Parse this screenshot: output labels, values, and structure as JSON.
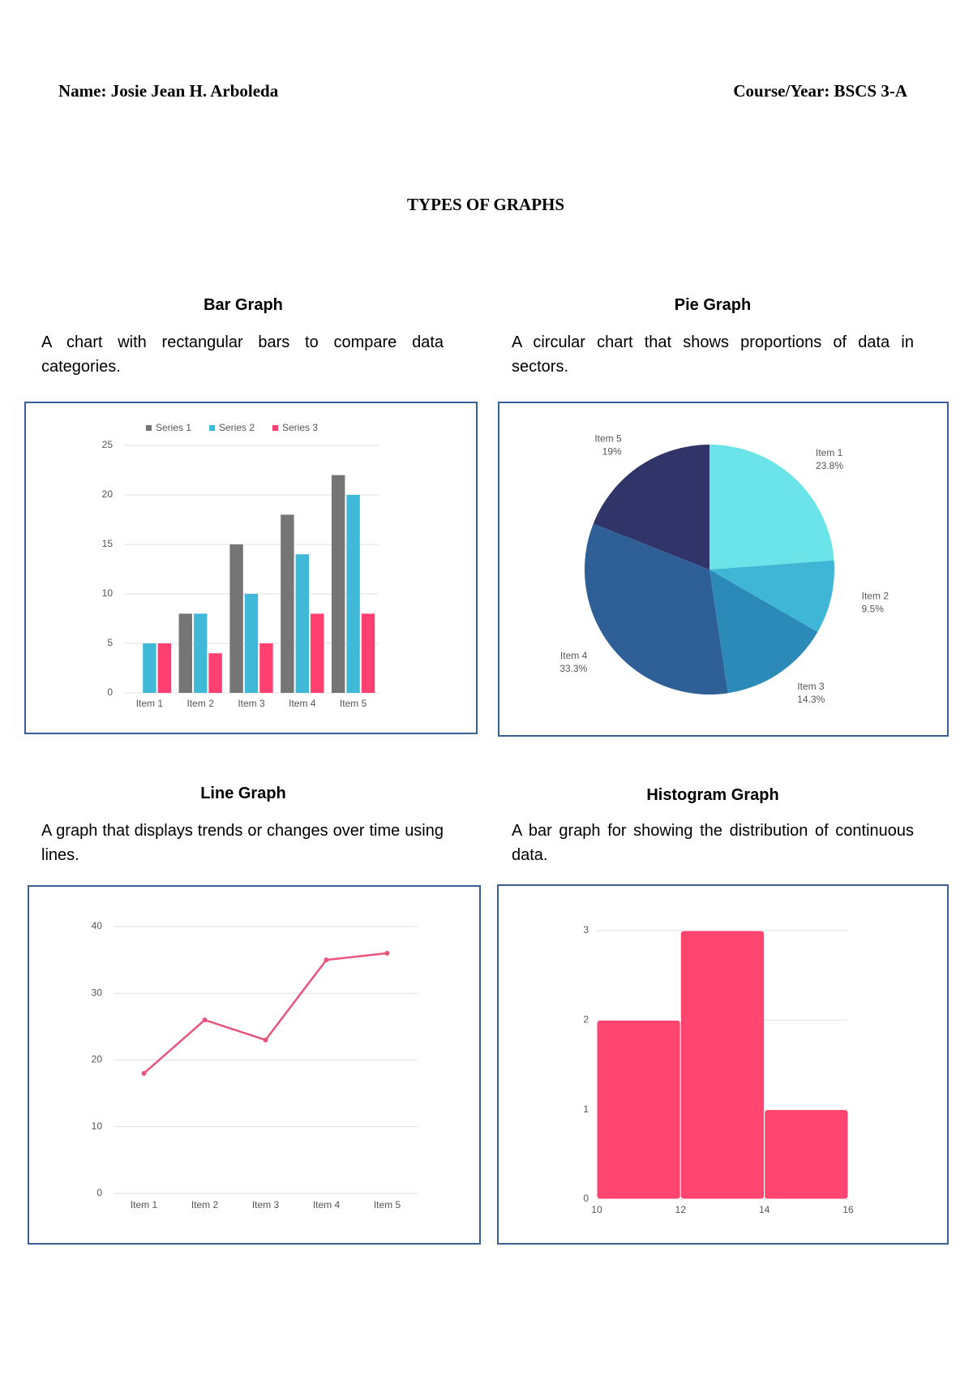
{
  "header": {
    "name": "Name: Josie Jean H. Arboleda",
    "course": "Course/Year: BSCS 3-A"
  },
  "title": "TYPES OF GRAPHS",
  "sections": [
    {
      "heading": "Bar Graph",
      "description": "A chart with rectangular bars to compare data categories."
    },
    {
      "heading": "Pie Graph",
      "description": "A circular chart that shows proportions of data in sectors."
    },
    {
      "heading": "Line Graph",
      "description": "A graph that displays trends or changes over time using lines."
    },
    {
      "heading": "Histogram Graph",
      "description": "A bar graph for showing the distribution of continuous data."
    }
  ],
  "chart_data": [
    {
      "type": "bar",
      "categories": [
        "Item 1",
        "Item 2",
        "Item 3",
        "Item 4",
        "Item 5"
      ],
      "series": [
        {
          "name": "Series 1",
          "color": "#757575",
          "values": [
            0,
            8,
            15,
            18,
            22
          ]
        },
        {
          "name": "Series 2",
          "color": "#40b8d8",
          "values": [
            5,
            8,
            10,
            14,
            20
          ]
        },
        {
          "name": "Series 3",
          "color": "#ff4070",
          "values": [
            5,
            4,
            5,
            8,
            8
          ]
        }
      ],
      "ylim": [
        0,
        25
      ],
      "yticks": [
        0,
        5,
        10,
        15,
        20,
        25
      ],
      "grid": true,
      "legend": "top"
    },
    {
      "type": "pie",
      "categories": [
        "Item 1",
        "Item 2",
        "Item 3",
        "Item 4",
        "Item 5"
      ],
      "values": [
        23.8,
        9.5,
        14.3,
        33.3,
        19
      ],
      "value_labels": [
        "23.8%",
        "9.5%",
        "14.3%",
        "33.3%",
        "19%"
      ],
      "colors": [
        "#6ae4e8",
        "#40b6d6",
        "#2b8ab8",
        "#2e5f96",
        "#313468"
      ]
    },
    {
      "type": "line",
      "categories": [
        "Item 1",
        "Item 2",
        "Item 3",
        "Item 4",
        "Item 5"
      ],
      "values": [
        18,
        26,
        23,
        35,
        36
      ],
      "color": "#e8557a",
      "ylim": [
        0,
        40
      ],
      "yticks": [
        0,
        10,
        20,
        30,
        40
      ],
      "grid": true
    },
    {
      "type": "histogram",
      "bins": [
        10,
        12,
        14,
        16
      ],
      "counts": [
        2,
        3,
        1
      ],
      "color": "#ff4570",
      "xlim": [
        10,
        16
      ],
      "xticks": [
        10,
        12,
        14,
        16
      ],
      "ylim": [
        0,
        3
      ],
      "yticks": [
        0,
        1,
        2,
        3
      ],
      "grid": true
    }
  ]
}
